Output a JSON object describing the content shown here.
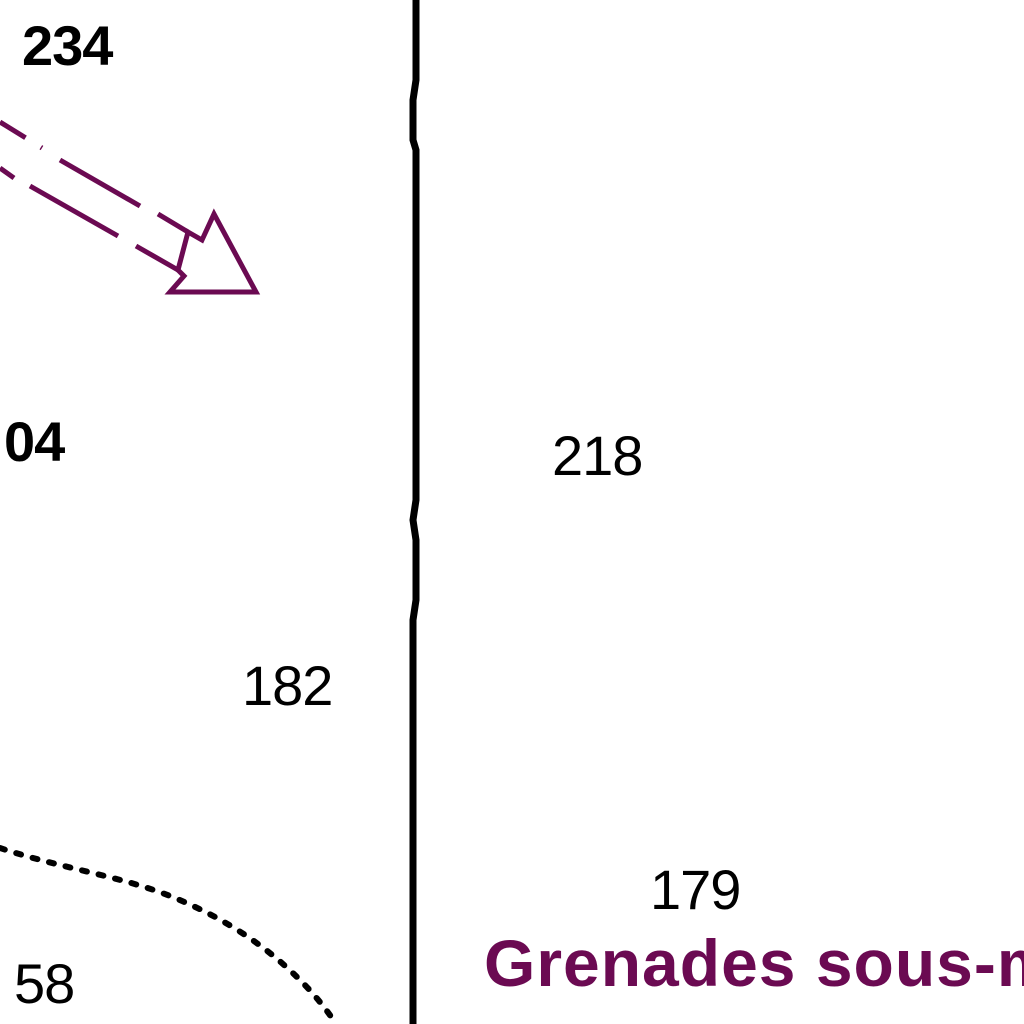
{
  "map": {
    "soundings": {
      "s234": "234",
      "s04": "04",
      "s218": "218",
      "s182": "182",
      "s179": "179",
      "s58": "58"
    },
    "area_label": "Grenades sous-m",
    "colors": {
      "area_label": "#6b0a52",
      "arrow": "#6b0a52",
      "lines": "#000000",
      "background": "#ffffff"
    }
  }
}
